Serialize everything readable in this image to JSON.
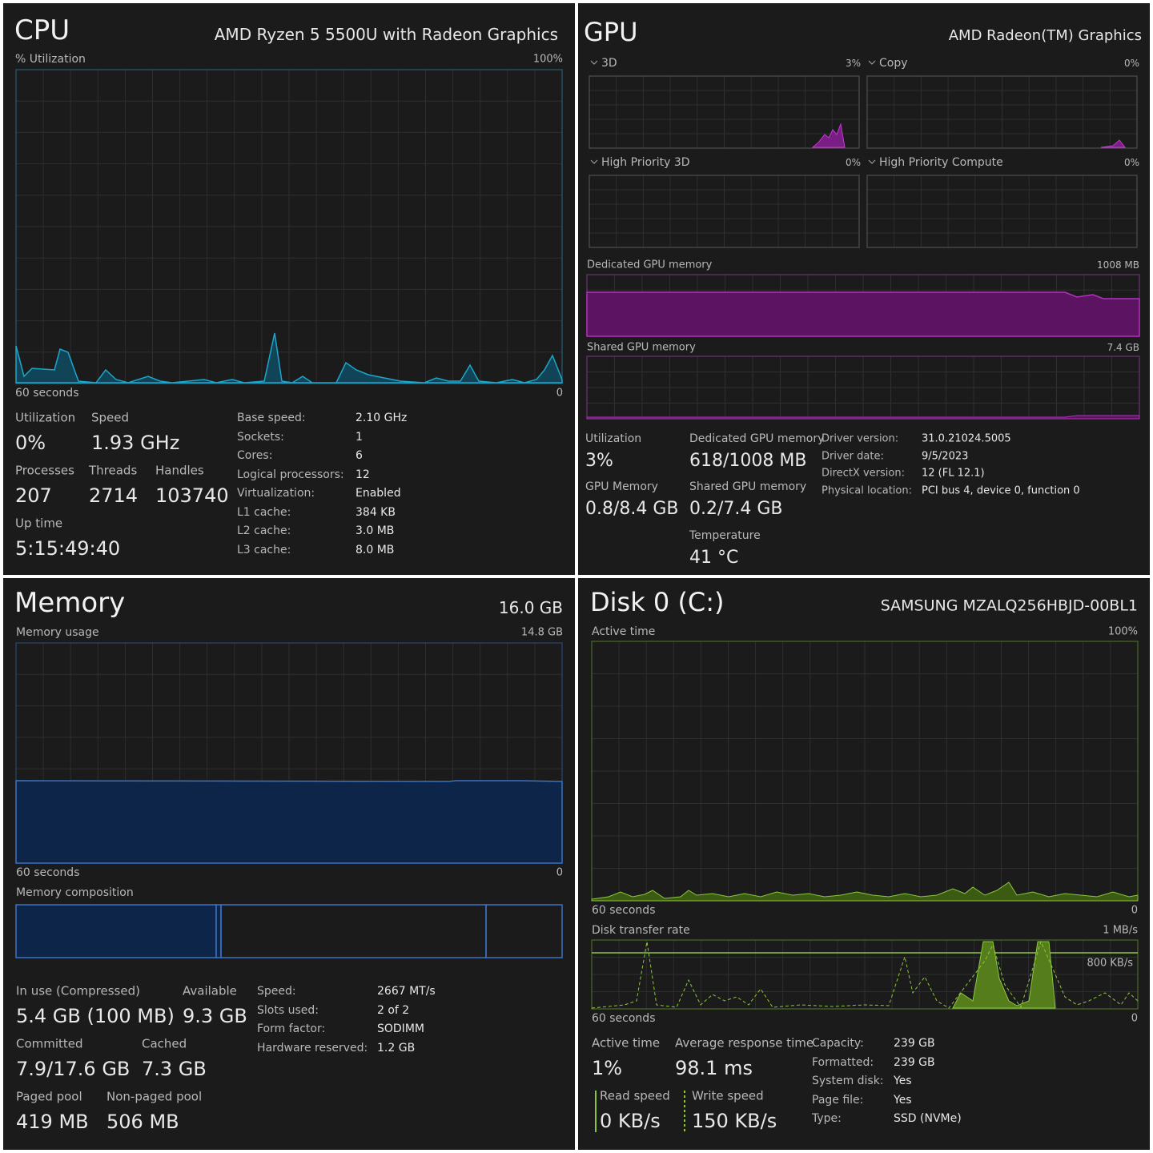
{
  "cpu": {
    "title": "CPU",
    "model": "AMD Ryzen 5 5500U with Radeon Graphics",
    "graph_label": "% Utilization",
    "graph_max": "100%",
    "graph_time": "60 seconds",
    "graph_min": "0",
    "stats": [
      {
        "label": "Utilization",
        "value": "0%"
      },
      {
        "label": "Speed",
        "value": "1.93 GHz"
      },
      {
        "label": "Processes",
        "value": "207"
      },
      {
        "label": "Threads",
        "value": "2714"
      },
      {
        "label": "Handles",
        "value": "103740"
      },
      {
        "label": "Up time",
        "value": "5:15:49:40"
      }
    ],
    "specs": [
      {
        "label": "Base speed:",
        "value": "2.10 GHz"
      },
      {
        "label": "Sockets:",
        "value": "1"
      },
      {
        "label": "Cores:",
        "value": "6"
      },
      {
        "label": "Logical processors:",
        "value": "12"
      },
      {
        "label": "Virtualization:",
        "value": "Enabled"
      },
      {
        "label": "L1 cache:",
        "value": "384 KB"
      },
      {
        "label": "L2 cache:",
        "value": "3.0 MB"
      },
      {
        "label": "L3 cache:",
        "value": "8.0 MB"
      }
    ]
  },
  "gpu": {
    "title": "GPU",
    "model": "AMD Radeon(TM) Graphics",
    "engines": [
      {
        "name": "3D",
        "value": "3%"
      },
      {
        "name": "Copy",
        "value": "0%"
      },
      {
        "name": "High Priority 3D",
        "value": "0%"
      },
      {
        "name": "High Priority Compute",
        "value": "0%"
      }
    ],
    "dedicated_graph": {
      "label": "Dedicated GPU memory",
      "max": "1008 MB"
    },
    "shared_graph": {
      "label": "Shared GPU memory",
      "max": "7.4 GB"
    },
    "stats": [
      {
        "label": "Utilization",
        "value": "3%"
      },
      {
        "label": "Dedicated GPU memory",
        "value": "618/1008 MB"
      },
      {
        "label": "GPU Memory",
        "value": "0.8/8.4 GB"
      },
      {
        "label": "Shared GPU memory",
        "value": "0.2/7.4 GB"
      },
      {
        "label": "Temperature",
        "value": "41 °C"
      }
    ],
    "specs": [
      {
        "label": "Driver version:",
        "value": "31.0.21024.5005"
      },
      {
        "label": "Driver date:",
        "value": "9/5/2023"
      },
      {
        "label": "DirectX version:",
        "value": "12 (FL 12.1)"
      },
      {
        "label": "Physical location:",
        "value": "PCI bus 4, device 0, function 0"
      }
    ]
  },
  "memory": {
    "title": "Memory",
    "total": "16.0 GB",
    "graph_label": "Memory usage",
    "graph_max": "14.8 GB",
    "graph_time": "60 seconds",
    "graph_min": "0",
    "composition_label": "Memory composition",
    "stats": [
      {
        "label": "In use (Compressed)",
        "value": "5.4 GB (100 MB)"
      },
      {
        "label": "Available",
        "value": "9.3 GB"
      },
      {
        "label": "Committed",
        "value": "7.9/17.6 GB"
      },
      {
        "label": "Cached",
        "value": "7.3 GB"
      },
      {
        "label": "Paged pool",
        "value": "419 MB"
      },
      {
        "label": "Non-paged pool",
        "value": "506 MB"
      }
    ],
    "specs": [
      {
        "label": "Speed:",
        "value": "2667 MT/s"
      },
      {
        "label": "Slots used:",
        "value": "2 of 2"
      },
      {
        "label": "Form factor:",
        "value": "SODIMM"
      },
      {
        "label": "Hardware reserved:",
        "value": "1.2 GB"
      }
    ]
  },
  "disk": {
    "title": "Disk 0 (C:)",
    "model": "SAMSUNG MZALQ256HBJD-00BL1",
    "graph_label": "Active time",
    "graph_max": "100%",
    "graph_time": "60 seconds",
    "graph_min": "0",
    "transfer_label": "Disk transfer rate",
    "transfer_max": "1 MB/s",
    "transfer_mark": "800 KB/s",
    "transfer_time": "60 seconds",
    "transfer_min": "0",
    "stats": [
      {
        "label": "Active time",
        "value": "1%"
      },
      {
        "label": "Average response time",
        "value": "98.1 ms"
      },
      {
        "label": "Read speed",
        "value": "0 KB/s"
      },
      {
        "label": "Write speed",
        "value": "150 KB/s"
      }
    ],
    "specs": [
      {
        "label": "Capacity:",
        "value": "239 GB"
      },
      {
        "label": "Formatted:",
        "value": "239 GB"
      },
      {
        "label": "System disk:",
        "value": "Yes"
      },
      {
        "label": "Page file:",
        "value": "Yes"
      },
      {
        "label": "Type:",
        "value": "SSD (NVMe)"
      }
    ]
  }
}
